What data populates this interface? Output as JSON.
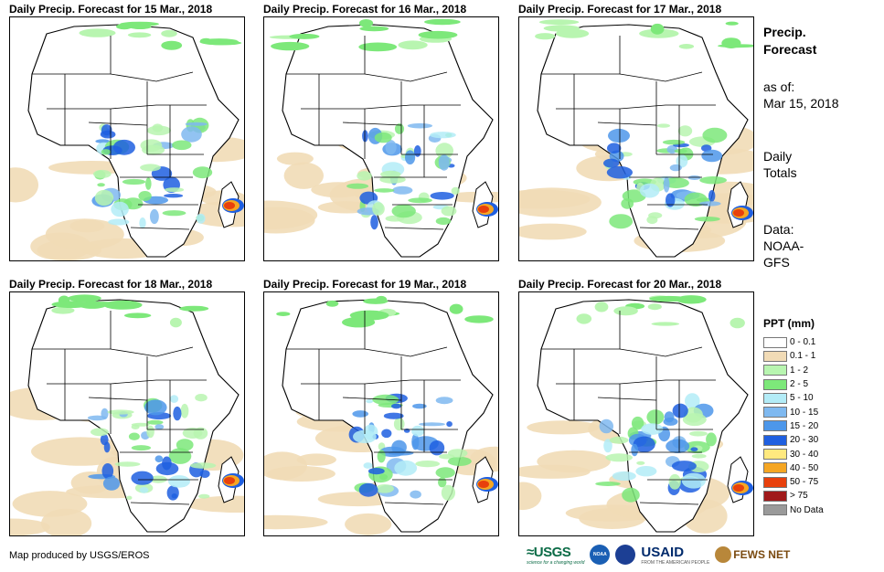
{
  "panels": [
    {
      "title": "Daily Precip. Forecast for 15 Mar., 2018"
    },
    {
      "title": "Daily Precip. Forecast for 16 Mar., 2018"
    },
    {
      "title": "Daily Precip. Forecast for 17 Mar., 2018"
    },
    {
      "title": "Daily Precip. Forecast for 18 Mar., 2018"
    },
    {
      "title": "Daily Precip. Forecast for 19 Mar., 2018"
    },
    {
      "title": "Daily Precip. Forecast for 20 Mar., 2018"
    }
  ],
  "sidebar": {
    "heading_line1": "Precip.",
    "heading_line2": "Forecast",
    "asof_label": "as of:",
    "asof_date": "Mar 15, 2018",
    "totals_line1": "Daily",
    "totals_line2": "Totals",
    "data_line1": "Data:",
    "data_line2": "NOAA-",
    "data_line3": "GFS"
  },
  "legend": {
    "title": "PPT (mm)",
    "items": [
      {
        "label": "0 - 0.1",
        "color": "#ffffff"
      },
      {
        "label": "0.1 - 1",
        "color": "#f1dbb6"
      },
      {
        "label": "1 - 2",
        "color": "#b8f5b0"
      },
      {
        "label": "2 - 5",
        "color": "#7de87a"
      },
      {
        "label": "5 - 10",
        "color": "#b3ecf7"
      },
      {
        "label": "10 - 15",
        "color": "#7fb9f0"
      },
      {
        "label": "15 - 20",
        "color": "#4d97ea"
      },
      {
        "label": "20 - 30",
        "color": "#1f5fe0"
      },
      {
        "label": "30 - 40",
        "color": "#ffe97f"
      },
      {
        "label": "40 - 50",
        "color": "#f5a623"
      },
      {
        "label": "50 - 75",
        "color": "#e8400c"
      },
      {
        "label": "> 75",
        "color": "#a0191a"
      },
      {
        "label": "No Data",
        "color": "#9a9a9a"
      }
    ]
  },
  "footer": {
    "credit": "Map produced by USGS/EROS"
  },
  "logos": {
    "usgs": "USGS",
    "usgs_tagline": "science for a changing world",
    "noaa": "NOAA",
    "usaid": "USAID",
    "usaid_tagline": "FROM THE AMERICAN PEOPLE",
    "fews": "FEWS NET"
  }
}
